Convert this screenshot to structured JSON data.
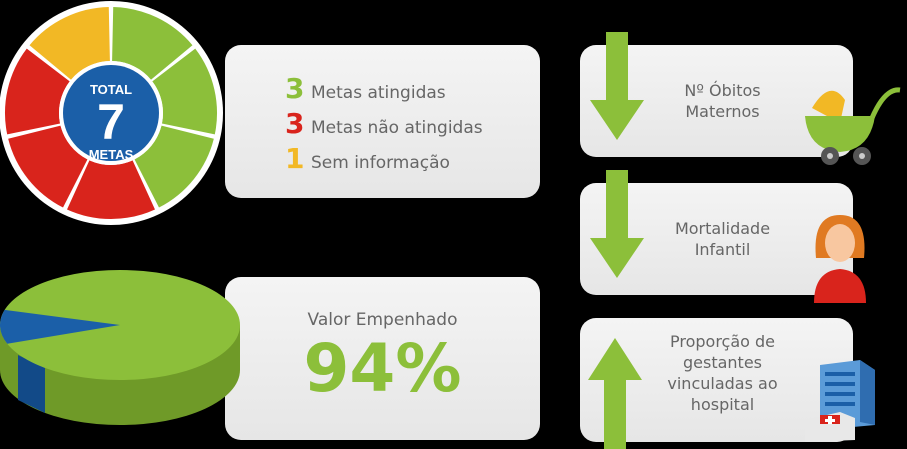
{
  "wheel": {
    "total_top": "TOTAL",
    "total_value": "7",
    "total_bottom": "METAS",
    "segments": [
      "achieved",
      "achieved",
      "achieved",
      "not-achieved",
      "not-achieved",
      "not-achieved",
      "no-info"
    ]
  },
  "legend": [
    {
      "count": "3",
      "label": "Metas atingidas",
      "color": "#8cbf3a"
    },
    {
      "count": "3",
      "label": "Metas não atingidas",
      "color": "#d9241c"
    },
    {
      "count": "1",
      "label": "Sem informação",
      "color": "#f2b825"
    }
  ],
  "valor": {
    "label": "Valor Empenhado",
    "value": "94%",
    "percent": 94
  },
  "indicators": [
    {
      "line1": "Nº Óbitos",
      "line2": "Maternos",
      "line3": "",
      "line4": "",
      "trend": "down",
      "icon": "baby-stroller-icon"
    },
    {
      "line1": "Mortalidade",
      "line2": "Infantil",
      "line3": "",
      "line4": "",
      "trend": "down",
      "icon": "woman-avatar-icon"
    },
    {
      "line1": "Proporção de",
      "line2": "gestantes",
      "line3": "vinculadas ao",
      "line4": "hospital",
      "trend": "up",
      "icon": "hospital-icon"
    }
  ],
  "colors": {
    "green": "#8cbf3a",
    "red": "#d9241c",
    "yellow": "#f2b825",
    "blue": "#1b5fa8"
  }
}
